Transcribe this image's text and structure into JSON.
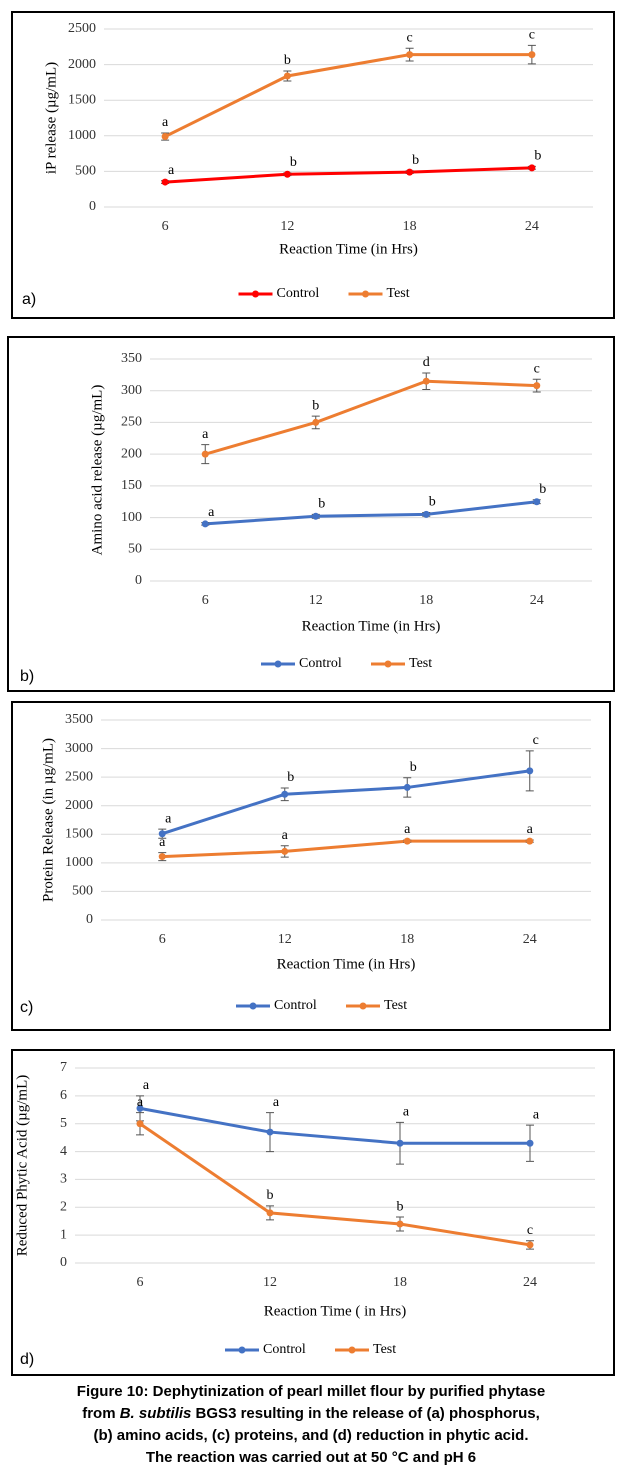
{
  "chart_data": [
    {
      "type": "line",
      "panel_label": "a)",
      "x_label": "Reaction Time (in Hrs)",
      "y_label": "iP release (µg/mL)",
      "categories": [
        "6",
        "12",
        "18",
        "24"
      ],
      "ylim": [
        0,
        2500
      ],
      "yticks": [
        0,
        500,
        1000,
        1500,
        2000,
        2500
      ],
      "grid": true,
      "legend": "bottom",
      "series": [
        {
          "name": "Control",
          "color": "#ff0000",
          "values": [
            350,
            460,
            490,
            550
          ],
          "errors": [
            20,
            20,
            20,
            20
          ],
          "letters": [
            "a",
            "b",
            "b",
            "b"
          ]
        },
        {
          "name": "Test",
          "color": "#ed7d31",
          "values": [
            990,
            1840,
            2140,
            2140
          ],
          "errors": [
            50,
            70,
            90,
            130
          ],
          "letters": [
            "a",
            "b",
            "c",
            "c"
          ]
        }
      ]
    },
    {
      "type": "line",
      "panel_label": "b)",
      "x_label": "Reaction Time  (in Hrs)",
      "y_label": "Amino acid release (µg/mL)",
      "categories": [
        "6",
        "12",
        "18",
        "24"
      ],
      "ylim": [
        0,
        350
      ],
      "yticks": [
        0,
        50,
        100,
        150,
        200,
        250,
        300,
        350
      ],
      "grid": true,
      "legend": "bottom",
      "series": [
        {
          "name": "Control",
          "color": "#4472c4",
          "values": [
            90,
            102,
            105,
            125
          ],
          "errors": [
            2,
            3,
            3,
            3
          ],
          "letters": [
            "a",
            "b",
            "b",
            "b"
          ]
        },
        {
          "name": "Test",
          "color": "#ed7d31",
          "values": [
            200,
            250,
            315,
            308
          ],
          "errors": [
            15,
            10,
            13,
            10
          ],
          "letters": [
            "a",
            "b",
            "d",
            "c"
          ]
        }
      ]
    },
    {
      "type": "line",
      "panel_label": "c)",
      "x_label": "Reaction Time (in Hrs)",
      "y_label": "Protein Release (in µg/mL)",
      "categories": [
        "6",
        "12",
        "18",
        "24"
      ],
      "ylim": [
        0,
        3500
      ],
      "yticks": [
        0,
        500,
        1000,
        1500,
        2000,
        2500,
        3000,
        3500
      ],
      "grid": true,
      "legend": "bottom",
      "series": [
        {
          "name": "Control",
          "color": "#4472c4",
          "values": [
            1510,
            2200,
            2320,
            2610
          ],
          "errors": [
            80,
            110,
            170,
            350
          ],
          "letters": [
            "a",
            "b",
            "b",
            "c"
          ]
        },
        {
          "name": "Test",
          "color": "#ed7d31",
          "values": [
            1110,
            1200,
            1380,
            1380
          ],
          "errors": [
            70,
            100,
            20,
            20
          ],
          "letters": [
            "a",
            "a",
            "a",
            "a"
          ]
        }
      ]
    },
    {
      "type": "line",
      "panel_label": "d)",
      "x_label": "Reaction Time ( in Hrs)",
      "y_label": "Reduced Phytic Acid (µg/mL)",
      "categories": [
        "6",
        "12",
        "18",
        "24"
      ],
      "ylim": [
        0,
        7
      ],
      "yticks": [
        0,
        1,
        2,
        3,
        4,
        5,
        6,
        7
      ],
      "grid": true,
      "legend": "bottom",
      "series": [
        {
          "name": "Control",
          "color": "#4472c4",
          "values": [
            5.55,
            4.7,
            4.3,
            4.3
          ],
          "errors": [
            0.45,
            0.7,
            0.75,
            0.65
          ],
          "letters": [
            "a",
            "a",
            "a",
            "a"
          ]
        },
        {
          "name": "Test",
          "color": "#ed7d31",
          "values": [
            5.0,
            1.8,
            1.4,
            0.65
          ],
          "errors": [
            0.4,
            0.25,
            0.25,
            0.15
          ],
          "letters": [
            "a",
            "b",
            "b",
            "c"
          ]
        }
      ]
    }
  ],
  "caption": [
    "Figure 10: Dephytinization of pearl millet flour by purified phytase",
    "from ",
    "B. subtilis",
    " BGS3 resulting in the release of (a) phosphorus,",
    "(b) amino acids, (c) proteins, and (d) reduction in phytic acid.",
    "The reaction was carried out at 50 °C and pH 6"
  ]
}
